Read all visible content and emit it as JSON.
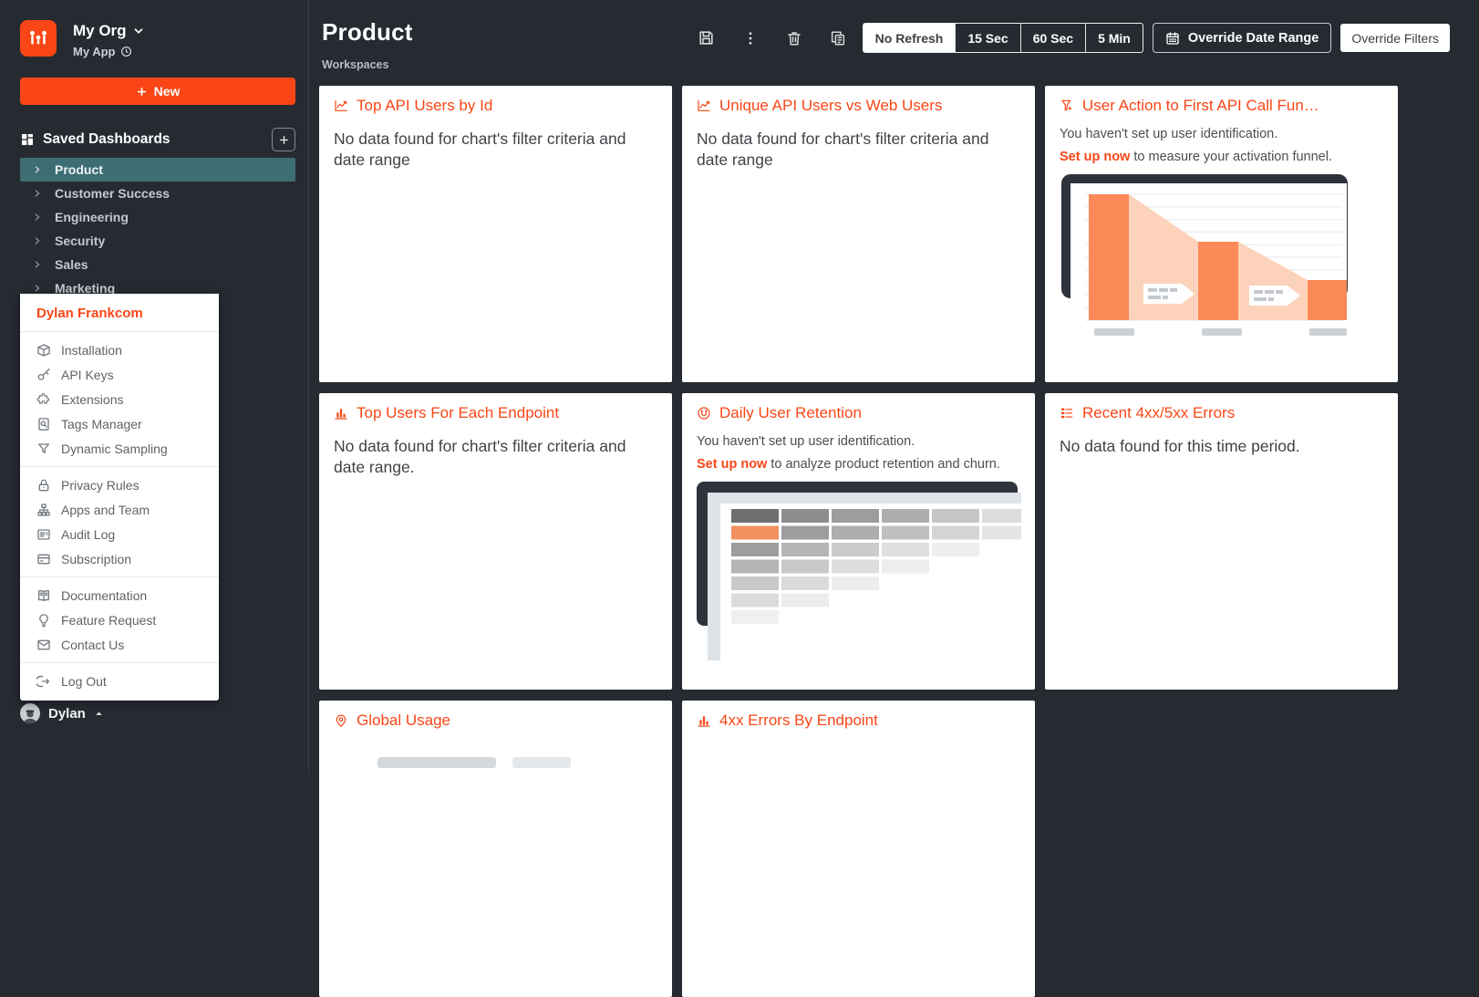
{
  "org": {
    "name": "My Org",
    "app": "My App"
  },
  "sidebar": {
    "new_label": "New",
    "saved_title": "Saved Dashboards",
    "dashboards": [
      {
        "label": "Product",
        "selected": true
      },
      {
        "label": "Customer Success",
        "selected": false
      },
      {
        "label": "Engineering",
        "selected": false
      },
      {
        "label": "Security",
        "selected": false
      },
      {
        "label": "Sales",
        "selected": false
      },
      {
        "label": "Marketing",
        "selected": false
      }
    ],
    "user_name": "Dylan"
  },
  "menu": {
    "header": "Dylan Frankcom",
    "sections": [
      {
        "items": [
          {
            "icon": "package-icon",
            "label": "Installation"
          },
          {
            "icon": "key-icon",
            "label": "API Keys"
          },
          {
            "icon": "puzzle-icon",
            "label": "Extensions"
          },
          {
            "icon": "tag-search-icon",
            "label": "Tags Manager"
          },
          {
            "icon": "filter-funnel-icon",
            "label": "Dynamic Sampling"
          }
        ]
      },
      {
        "items": [
          {
            "icon": "lock-icon",
            "label": "Privacy Rules"
          },
          {
            "icon": "org-chart-icon",
            "label": "Apps and Team"
          },
          {
            "icon": "audit-log-icon",
            "label": "Audit Log"
          },
          {
            "icon": "credit-card-icon",
            "label": "Subscription"
          }
        ]
      },
      {
        "items": [
          {
            "icon": "book-icon",
            "label": "Documentation"
          },
          {
            "icon": "lightbulb-icon",
            "label": "Feature Request"
          },
          {
            "icon": "mail-icon",
            "label": "Contact Us"
          }
        ]
      },
      {
        "items": [
          {
            "icon": "logout-icon",
            "label": "Log Out"
          }
        ]
      }
    ]
  },
  "header": {
    "title": "Product",
    "subtitle": "Workspaces",
    "toolbar_icons": [
      {
        "icon": "save-icon"
      },
      {
        "icon": "more-options-icon"
      },
      {
        "icon": "delete-icon"
      },
      {
        "icon": "duplicate-icon"
      }
    ],
    "refresh_options": [
      {
        "label": "No Refresh",
        "active": true
      },
      {
        "label": "15 Sec",
        "active": false
      },
      {
        "label": "60 Sec",
        "active": false
      },
      {
        "label": "5 Min",
        "active": false
      }
    ],
    "override_date_range": "Override Date Range",
    "override_filters": "Override Filters"
  },
  "cards": [
    {
      "icon": "line-chart-icon",
      "title": "Top API Users by Id",
      "message": "No data found for chart's filter criteria and date range"
    },
    {
      "icon": "line-chart-icon",
      "title": "Unique API Users vs Web Users",
      "message": "No data found for chart's filter criteria and date range"
    },
    {
      "icon": "funnel-chart-icon",
      "title": "User Action to First API Call Fun…",
      "notice": {
        "line1": "You haven't set up user identification.",
        "link": "Set up now",
        "line2": " to measure your activation funnel."
      },
      "illustration": "funnel-preview"
    },
    {
      "icon": "bar-chart-icon",
      "title": "Top Users For Each Endpoint",
      "message": "No data found for chart's filter criteria and date range."
    },
    {
      "icon": "retention-icon",
      "title": "Daily User Retention",
      "notice": {
        "line1": "You haven't set up user identification.",
        "link": "Set up now",
        "line2": " to analyze product retention and churn."
      },
      "illustration": "retention-preview"
    },
    {
      "icon": "error-list-icon",
      "title": "Recent 4xx/5xx Errors",
      "message": "No data found for this time period."
    },
    {
      "icon": "map-pin-icon",
      "title": "Global Usage",
      "illustration": "map-preview"
    },
    {
      "icon": "bar-chart-icon",
      "title": "4xx Errors By Endpoint"
    }
  ],
  "colors": {
    "accent": "#fa4616",
    "selected_teal": "#3e6e74",
    "background": "#262b32",
    "funnel_bar": "#fb8a58",
    "funnel_light": "#fdd2ba",
    "retention_highlight": "#f2915f"
  }
}
